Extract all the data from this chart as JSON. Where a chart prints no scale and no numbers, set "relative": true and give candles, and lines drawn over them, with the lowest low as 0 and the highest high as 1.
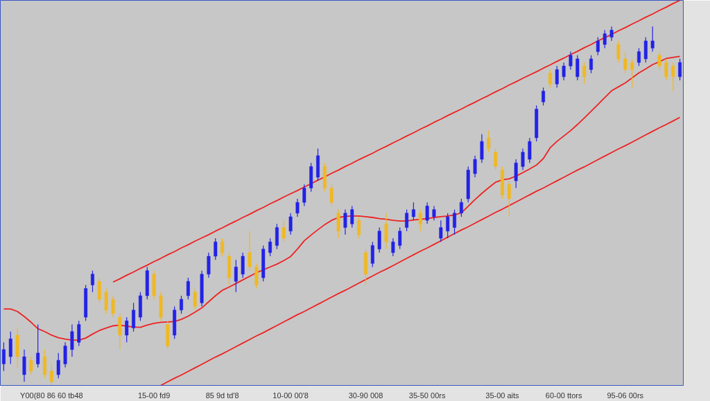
{
  "chart_data": {
    "type": "candlestick",
    "relative": true,
    "categories": [
      null,
      null,
      null,
      null,
      null,
      null,
      null,
      "Y00(80 86 60 tb48",
      null,
      null,
      null,
      null,
      null,
      null,
      null,
      null,
      null,
      null,
      null,
      null,
      null,
      null,
      "15-00 fd9",
      null,
      null,
      null,
      null,
      null,
      null,
      null,
      null,
      null,
      "85 9d td'8",
      null,
      null,
      null,
      null,
      null,
      null,
      null,
      null,
      null,
      "10-00 00'8",
      null,
      null,
      null,
      null,
      null,
      null,
      null,
      null,
      null,
      null,
      "30-90 008",
      null,
      null,
      null,
      null,
      null,
      null,
      null,
      null,
      "35-50 00rs",
      null,
      null,
      null,
      null,
      null,
      null,
      null,
      null,
      null,
      null,
      "35-00 aits",
      null,
      null,
      null,
      null,
      null,
      null,
      null,
      null,
      "60-00 ttors",
      null,
      null,
      null,
      null,
      null,
      null,
      null,
      null,
      "95-06 00rs",
      null,
      null,
      null,
      null,
      null,
      null,
      null,
      null
    ],
    "ohlc": [
      [
        0.06,
        0.12,
        0.04,
        0.1
      ],
      [
        0.08,
        0.15,
        0.06,
        0.13
      ],
      [
        0.14,
        0.16,
        0.05,
        0.08
      ],
      [
        0.03,
        0.1,
        0.01,
        0.08
      ],
      [
        0.07,
        0.08,
        0.03,
        0.04
      ],
      [
        0.06,
        0.17,
        0.05,
        0.09
      ],
      [
        0.08,
        0.1,
        0.02,
        0.03
      ],
      [
        0.04,
        0.06,
        0.0,
        0.01
      ],
      [
        0.03,
        0.09,
        0.02,
        0.07
      ],
      [
        0.06,
        0.12,
        0.05,
        0.11
      ],
      [
        0.1,
        0.17,
        0.08,
        0.15
      ],
      [
        0.12,
        0.18,
        0.11,
        0.17
      ],
      [
        0.19,
        0.28,
        0.18,
        0.27
      ],
      [
        0.28,
        0.32,
        0.26,
        0.31
      ],
      [
        0.29,
        0.3,
        0.23,
        0.24
      ],
      [
        0.26,
        0.27,
        0.2,
        0.21
      ],
      [
        0.24,
        0.25,
        0.19,
        0.2
      ],
      [
        0.19,
        0.2,
        0.1,
        0.14
      ],
      [
        0.14,
        0.19,
        0.12,
        0.18
      ],
      [
        0.16,
        0.23,
        0.15,
        0.21
      ],
      [
        0.19,
        0.26,
        0.18,
        0.25
      ],
      [
        0.25,
        0.33,
        0.24,
        0.32
      ],
      [
        0.31,
        0.32,
        0.24,
        0.25
      ],
      [
        0.25,
        0.26,
        0.18,
        0.19
      ],
      [
        0.17,
        0.18,
        0.1,
        0.11
      ],
      [
        0.14,
        0.22,
        0.13,
        0.21
      ],
      [
        0.21,
        0.25,
        0.2,
        0.24
      ],
      [
        0.25,
        0.3,
        0.24,
        0.29
      ],
      [
        0.26,
        0.27,
        0.21,
        0.22
      ],
      [
        0.23,
        0.32,
        0.22,
        0.31
      ],
      [
        0.31,
        0.37,
        0.3,
        0.36
      ],
      [
        0.36,
        0.41,
        0.35,
        0.4
      ],
      [
        0.4,
        0.41,
        0.36,
        0.37
      ],
      [
        0.36,
        0.37,
        0.28,
        0.3
      ],
      [
        0.29,
        0.35,
        0.26,
        0.33
      ],
      [
        0.31,
        0.37,
        0.3,
        0.36
      ],
      [
        0.37,
        0.43,
        0.32,
        0.33
      ],
      [
        0.33,
        0.34,
        0.27,
        0.28
      ],
      [
        0.3,
        0.39,
        0.29,
        0.38
      ],
      [
        0.37,
        0.41,
        0.36,
        0.4
      ],
      [
        0.39,
        0.45,
        0.38,
        0.44
      ],
      [
        0.44,
        0.46,
        0.4,
        0.41
      ],
      [
        0.43,
        0.48,
        0.42,
        0.47
      ],
      [
        0.48,
        0.52,
        0.47,
        0.51
      ],
      [
        0.51,
        0.56,
        0.5,
        0.55
      ],
      [
        0.55,
        0.62,
        0.54,
        0.61
      ],
      [
        0.58,
        0.66,
        0.57,
        0.64
      ],
      [
        0.61,
        0.62,
        0.54,
        0.55
      ],
      [
        0.55,
        0.56,
        0.5,
        0.51
      ],
      [
        0.48,
        0.49,
        0.41,
        0.43
      ],
      [
        0.44,
        0.49,
        0.42,
        0.48
      ],
      [
        0.45,
        0.5,
        0.44,
        0.49
      ],
      [
        0.46,
        0.47,
        0.41,
        0.42
      ],
      [
        0.37,
        0.38,
        0.28,
        0.31
      ],
      [
        0.34,
        0.4,
        0.33,
        0.39
      ],
      [
        0.38,
        0.44,
        0.37,
        0.43
      ],
      [
        0.45,
        0.48,
        0.38,
        0.4
      ],
      [
        0.37,
        0.41,
        0.36,
        0.4
      ],
      [
        0.39,
        0.44,
        0.38,
        0.43
      ],
      [
        0.44,
        0.49,
        0.43,
        0.48
      ],
      [
        0.47,
        0.51,
        0.46,
        0.49
      ],
      [
        0.48,
        0.49,
        0.43,
        0.45
      ],
      [
        0.46,
        0.51,
        0.45,
        0.5
      ],
      [
        0.47,
        0.5,
        0.46,
        0.49
      ],
      [
        0.41,
        0.46,
        0.4,
        0.44
      ],
      [
        0.43,
        0.48,
        0.41,
        0.47
      ],
      [
        0.44,
        0.49,
        0.42,
        0.48
      ],
      [
        0.48,
        0.52,
        0.47,
        0.51
      ],
      [
        0.52,
        0.61,
        0.51,
        0.6
      ],
      [
        0.59,
        0.64,
        0.58,
        0.63
      ],
      [
        0.63,
        0.7,
        0.62,
        0.68
      ],
      [
        0.69,
        0.71,
        0.65,
        0.66
      ],
      [
        0.65,
        0.66,
        0.6,
        0.61
      ],
      [
        0.6,
        0.61,
        0.52,
        0.53
      ],
      [
        0.56,
        0.57,
        0.47,
        0.52
      ],
      [
        0.57,
        0.63,
        0.55,
        0.62
      ],
      [
        0.61,
        0.66,
        0.6,
        0.65
      ],
      [
        0.63,
        0.69,
        0.62,
        0.68
      ],
      [
        0.69,
        0.78,
        0.68,
        0.77
      ],
      [
        0.79,
        0.83,
        0.78,
        0.82
      ],
      [
        0.87,
        0.88,
        0.83,
        0.84
      ],
      [
        0.84,
        0.89,
        0.83,
        0.88
      ],
      [
        0.86,
        0.9,
        0.85,
        0.89
      ],
      [
        0.89,
        0.93,
        0.88,
        0.92
      ],
      [
        0.86,
        0.92,
        0.85,
        0.91
      ],
      [
        0.89,
        0.9,
        0.84,
        0.86
      ],
      [
        0.88,
        0.92,
        0.87,
        0.91
      ],
      [
        0.93,
        0.97,
        0.92,
        0.96
      ],
      [
        0.95,
        0.99,
        0.94,
        0.98
      ],
      [
        0.97,
        1.0,
        0.96,
        0.99
      ],
      [
        0.95,
        0.96,
        0.9,
        0.91
      ],
      [
        0.91,
        0.93,
        0.87,
        0.88
      ],
      [
        0.9,
        0.91,
        0.83,
        0.88
      ],
      [
        0.9,
        0.94,
        0.89,
        0.93
      ],
      [
        0.91,
        0.97,
        0.9,
        0.96
      ],
      [
        0.94,
        1.0,
        0.93,
        0.96
      ],
      [
        0.92,
        0.93,
        0.88,
        0.89
      ],
      [
        0.9,
        0.91,
        0.85,
        0.86
      ],
      [
        0.89,
        0.9,
        0.82,
        0.86
      ],
      [
        0.86,
        0.91,
        0.85,
        0.9
      ]
    ],
    "colors": [
      "#2222e6",
      "#2222e6",
      "#f0b822",
      "#2222e6",
      "#f0b822",
      "#2222e6",
      "#f0b822",
      "#f0b822",
      "#2222e6",
      "#2222e6",
      "#2222e6",
      "#2222e6",
      "#2222e6",
      "#2222e6",
      "#f0b822",
      "#f0b822",
      "#f0b822",
      "#f0b822",
      "#2222e6",
      "#2222e6",
      "#2222e6",
      "#2222e6",
      "#f0b822",
      "#f0b822",
      "#f0b822",
      "#2222e6",
      "#2222e6",
      "#2222e6",
      "#f0b822",
      "#2222e6",
      "#2222e6",
      "#2222e6",
      "#f0b822",
      "#f0b822",
      "#2222e6",
      "#2222e6",
      "#f0b822",
      "#f0b822",
      "#2222e6",
      "#2222e6",
      "#2222e6",
      "#f0b822",
      "#2222e6",
      "#2222e6",
      "#2222e6",
      "#2222e6",
      "#2222e6",
      "#f0b822",
      "#f0b822",
      "#f0b822",
      "#2222e6",
      "#2222e6",
      "#f0b822",
      "#f0b822",
      "#2222e6",
      "#2222e6",
      "#f0b822",
      "#2222e6",
      "#2222e6",
      "#2222e6",
      "#2222e6",
      "#f0b822",
      "#2222e6",
      "#2222e6",
      "#2222e6",
      "#2222e6",
      "#2222e6",
      "#2222e6",
      "#2222e6",
      "#2222e6",
      "#2222e6",
      "#f0b822",
      "#f0b822",
      "#f0b822",
      "#f0b822",
      "#2222e6",
      "#2222e6",
      "#2222e6",
      "#2222e6",
      "#2222e6",
      "#f0b822",
      "#2222e6",
      "#2222e6",
      "#2222e6",
      "#2222e6",
      "#f0b822",
      "#2222e6",
      "#2222e6",
      "#2222e6",
      "#2222e6",
      "#f0b822",
      "#f0b822",
      "#f0b822",
      "#2222e6",
      "#2222e6",
      "#2222e6",
      "#f0b822",
      "#f0b822",
      "#f0b822",
      "#2222e6"
    ],
    "series": [
      {
        "type": "line",
        "color": "#ee2222",
        "values": [
          0.213,
          0.213,
          0.206,
          0.192,
          0.176,
          0.158,
          0.15,
          0.14,
          0.133,
          0.129,
          0.126,
          0.126,
          0.132,
          0.143,
          0.153,
          0.16,
          0.166,
          0.168,
          0.165,
          0.163,
          0.162,
          0.168,
          0.173,
          0.176,
          0.177,
          0.178,
          0.184,
          0.193,
          0.204,
          0.216,
          0.233,
          0.25,
          0.265,
          0.274,
          0.284,
          0.294,
          0.304,
          0.314,
          0.322,
          0.33,
          0.338,
          0.348,
          0.359,
          0.38,
          0.403,
          0.419,
          0.434,
          0.448,
          0.46,
          0.468,
          0.471,
          0.472,
          0.472,
          0.47,
          0.468,
          0.465,
          0.463,
          0.46,
          0.458,
          0.458,
          0.461,
          0.463,
          0.465,
          0.468,
          0.47,
          0.472,
          0.475,
          0.481,
          0.499,
          0.518,
          0.535,
          0.551,
          0.566,
          0.573,
          0.576,
          0.583,
          0.593,
          0.603,
          0.614,
          0.632,
          0.662,
          0.68,
          0.695,
          0.71,
          0.727,
          0.745,
          0.764,
          0.783,
          0.802,
          0.821,
          0.832,
          0.843,
          0.857,
          0.871,
          0.882,
          0.894,
          0.902,
          0.911,
          0.914,
          0.917
        ]
      },
      {
        "type": "line",
        "color": "#ee2222",
        "values": [
          null,
          null,
          null,
          null,
          null,
          null,
          null,
          null,
          null,
          null,
          null,
          null,
          null,
          null,
          null,
          null,
          0.288,
          0.297,
          0.307,
          0.316,
          0.326,
          0.335,
          0.345,
          0.354,
          0.364,
          0.373,
          0.383,
          0.392,
          0.402,
          0.411,
          0.42,
          0.43,
          0.439,
          0.449,
          0.458,
          0.468,
          0.477,
          0.487,
          0.496,
          0.506,
          0.515,
          0.525,
          0.534,
          0.543,
          0.553,
          0.562,
          0.572,
          0.581,
          0.591,
          0.6,
          0.61,
          0.619,
          0.629,
          0.638,
          0.647,
          0.657,
          0.666,
          0.676,
          0.685,
          0.695,
          0.704,
          0.714,
          0.723,
          0.733,
          0.742,
          0.752,
          0.761,
          0.77,
          0.78,
          0.789,
          0.799,
          0.808,
          0.818,
          0.827,
          0.837,
          0.846,
          0.856,
          0.865,
          0.874,
          0.884,
          0.893,
          0.903,
          0.912,
          0.922,
          0.931,
          0.941,
          0.95,
          0.96,
          0.969,
          0.978,
          0.988,
          0.997,
          1.007,
          1.016,
          1.026,
          1.035,
          1.045,
          1.054,
          1.064,
          1.073
        ]
      },
      {
        "type": "line",
        "color": "#ee2222",
        "values": [
          null,
          null,
          null,
          null,
          null,
          null,
          null,
          null,
          null,
          null,
          null,
          null,
          null,
          null,
          null,
          null,
          null,
          null,
          null,
          null,
          null,
          null,
          null,
          0.0,
          0.01,
          0.02,
          0.029,
          0.039,
          0.049,
          0.059,
          0.069,
          0.079,
          0.088,
          0.098,
          0.108,
          0.118,
          0.128,
          0.138,
          0.147,
          0.157,
          0.167,
          0.177,
          0.187,
          0.197,
          0.206,
          0.216,
          0.226,
          0.236,
          0.246,
          0.256,
          0.265,
          0.275,
          0.285,
          0.295,
          0.305,
          0.315,
          0.324,
          0.334,
          0.344,
          0.354,
          0.364,
          0.374,
          0.383,
          0.393,
          0.403,
          0.413,
          0.423,
          0.433,
          0.442,
          0.452,
          0.462,
          0.472,
          0.482,
          0.491,
          0.501,
          0.511,
          0.521,
          0.531,
          0.541,
          0.55,
          0.56,
          0.57,
          0.58,
          0.59,
          0.6,
          0.609,
          0.619,
          0.629,
          0.639,
          0.649,
          0.659,
          0.668,
          0.678,
          0.688,
          0.698,
          0.708,
          0.718,
          0.727,
          0.737,
          0.747
        ]
      }
    ]
  }
}
